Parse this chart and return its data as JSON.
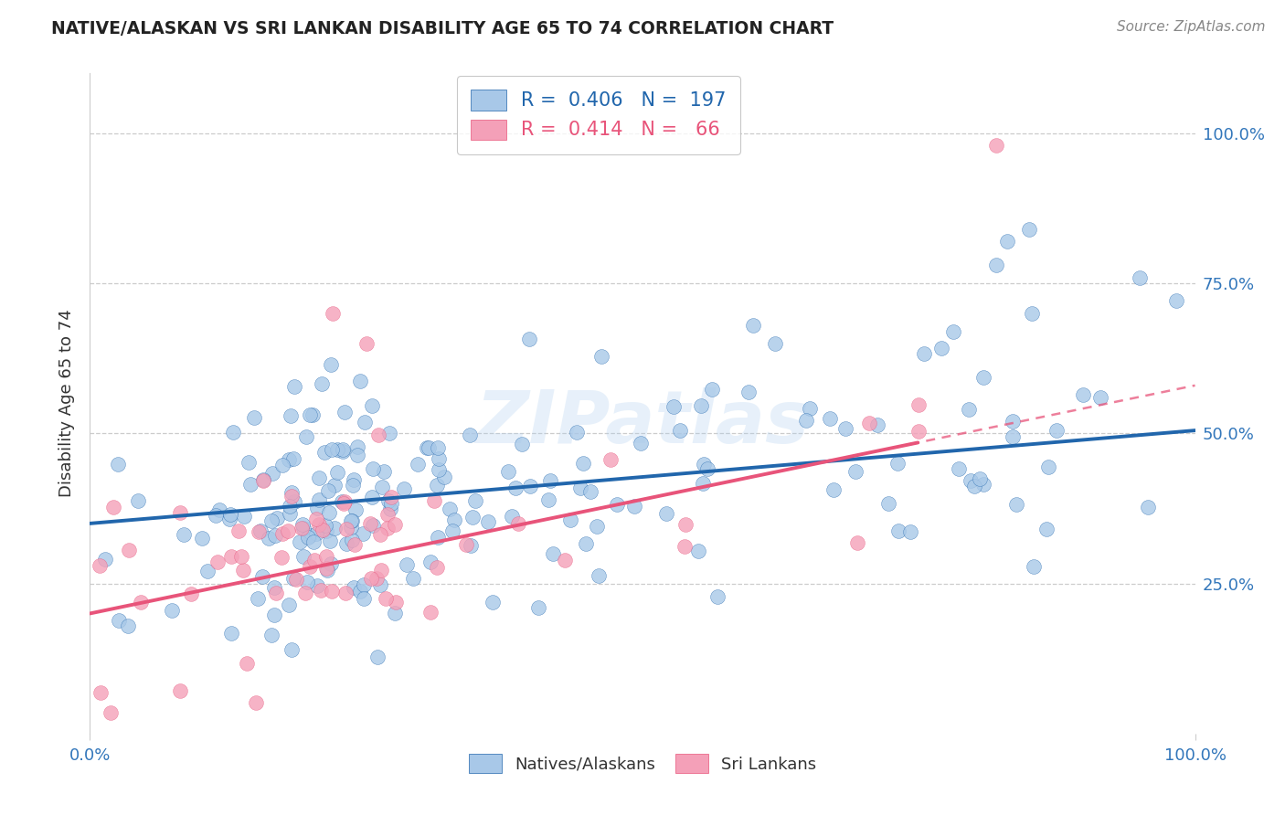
{
  "title": "NATIVE/ALASKAN VS SRI LANKAN DISABILITY AGE 65 TO 74 CORRELATION CHART",
  "source_text": "Source: ZipAtlas.com",
  "ylabel": "Disability Age 65 to 74",
  "legend_labels": [
    "Natives/Alaskans",
    "Sri Lankans"
  ],
  "legend_r_blue": "R =  0.406",
  "legend_n_blue": "N =  197",
  "legend_r_pink": "R =  0.414",
  "legend_n_pink": "N =  66",
  "blue_color": "#a8c8e8",
  "pink_color": "#f4a0b8",
  "blue_line_color": "#2166ac",
  "pink_line_color": "#e8547a",
  "background_color": "#ffffff",
  "watermark_text": "ZIPatlas",
  "blue_r": 0.406,
  "blue_n": 197,
  "pink_r": 0.414,
  "pink_n": 66,
  "xlim": [
    0.0,
    1.0
  ],
  "ylim": [
    0.0,
    1.1
  ],
  "blue_intercept": 0.35,
  "blue_slope": 0.155,
  "pink_intercept": 0.2,
  "pink_slope": 0.38
}
